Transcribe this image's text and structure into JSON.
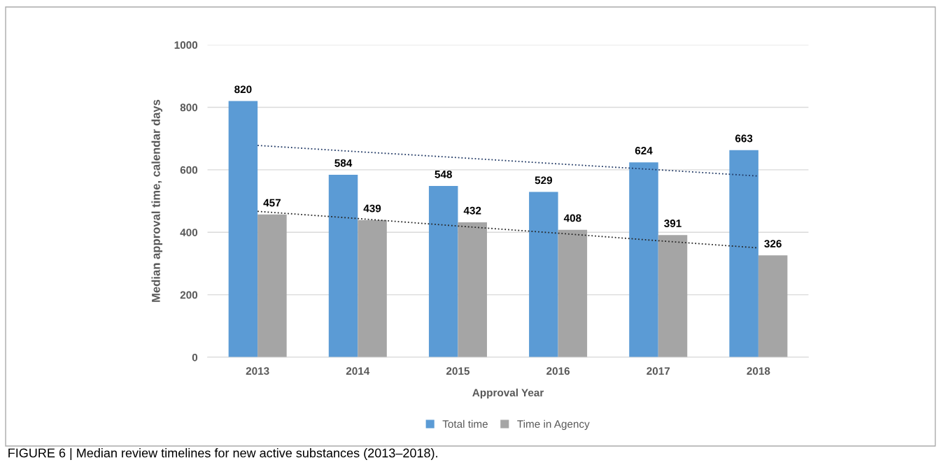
{
  "chart_data": {
    "type": "bar",
    "xlabel": "Approval Year",
    "ylabel": "Median approval time, calendar days",
    "categories": [
      "2013",
      "2014",
      "2015",
      "2016",
      "2017",
      "2018"
    ],
    "series": [
      {
        "name": "Total time",
        "color": "#5b9bd5",
        "values": [
          820,
          584,
          548,
          529,
          624,
          663
        ],
        "value_labels": [
          "820",
          "584",
          "548",
          "529",
          "624",
          "663"
        ]
      },
      {
        "name": "Time in Agency",
        "color": "#a5a5a5",
        "values": [
          457,
          439,
          432,
          408,
          391,
          326
        ],
        "value_labels": [
          "457",
          "439",
          "432",
          "408",
          "391",
          "326"
        ]
      },
      {
        "type": "line",
        "color": "#203864",
        "line_style": "dotted",
        "values": [
          678,
          658,
          639,
          619,
          600,
          580
        ]
      },
      {
        "type": "line",
        "color": "#262626",
        "line_style": "dotted",
        "values": [
          467,
          444,
          420,
          397,
          373,
          350
        ]
      }
    ],
    "ylim": [
      0,
      1000
    ],
    "yticks": [
      0,
      200,
      400,
      600,
      800,
      1000
    ],
    "grid": "y",
    "legend": "bottom",
    "annotations": [
      "FIGURE 6 | Median review timelines for new active substances (2013–2018)."
    ]
  }
}
